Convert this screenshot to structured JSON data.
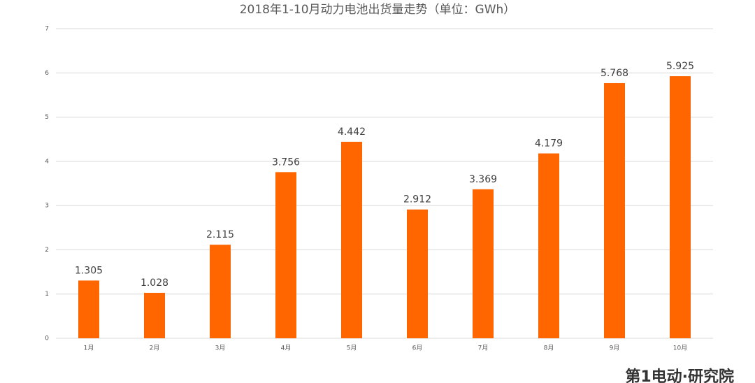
{
  "chart_data": {
    "type": "bar",
    "title": "2018年1-10月动力电池出货量走势（单位：GWh）",
    "categories": [
      "1月",
      "2月",
      "3月",
      "4月",
      "5月",
      "6月",
      "7月",
      "8月",
      "9月",
      "10月"
    ],
    "values": [
      1.305,
      1.028,
      2.115,
      3.756,
      4.442,
      2.912,
      3.369,
      4.179,
      5.768,
      5.925
    ],
    "color": "#ff6600",
    "data_labels": true,
    "ylim": [
      0,
      7
    ],
    "yticks": [
      0,
      1,
      2,
      3,
      4,
      5,
      6,
      7
    ],
    "grid": true
  },
  "watermark": "第1电动·研究院"
}
